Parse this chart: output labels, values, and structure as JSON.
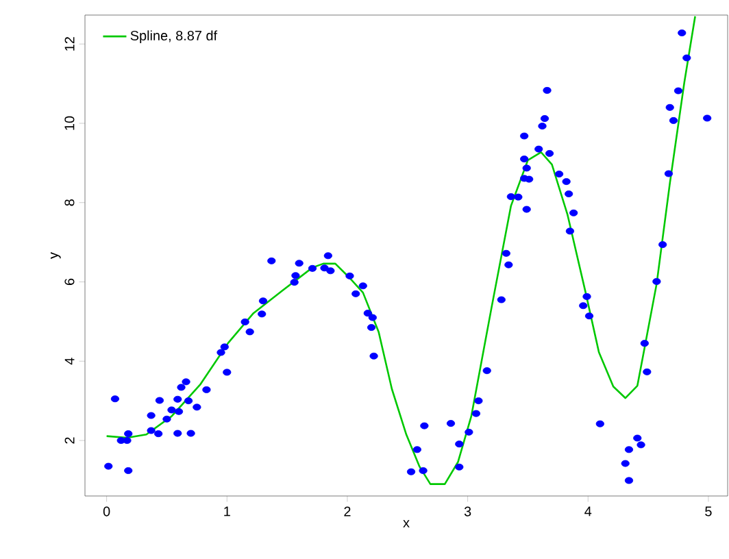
{
  "chart_data": {
    "type": "scatter",
    "xlabel": "x",
    "ylabel": "y",
    "xlim": [
      -0.18,
      5.16
    ],
    "ylim": [
      0.6,
      12.73
    ],
    "xticks": [
      0,
      1,
      2,
      3,
      4,
      5
    ],
    "yticks": [
      2,
      4,
      6,
      8,
      10,
      12
    ],
    "grid": false,
    "legend": "top left",
    "series": [
      {
        "marker": "circle",
        "color": "#0000ff",
        "x": [
          0.015,
          0.07,
          0.12,
          0.17,
          0.18,
          0.18,
          0.37,
          0.37,
          0.44,
          0.43,
          0.5,
          0.54,
          0.59,
          0.6,
          0.59,
          0.62,
          0.66,
          0.68,
          0.7,
          0.75,
          0.83,
          0.95,
          0.98,
          1.0,
          1.15,
          1.19,
          1.3,
          1.29,
          1.37,
          1.56,
          1.57,
          1.6,
          1.71,
          1.84,
          1.81,
          1.86,
          2.02,
          2.13,
          2.07,
          2.17,
          2.21,
          2.2,
          2.22,
          2.64,
          2.58,
          2.53,
          2.63,
          2.86,
          2.93,
          2.93,
          3.01,
          3.07,
          3.09,
          3.16,
          3.28,
          3.34,
          3.32,
          3.36,
          3.42,
          3.49,
          3.47,
          3.51,
          3.49,
          3.47,
          3.47,
          3.59,
          3.68,
          3.62,
          3.64,
          3.66,
          3.76,
          3.82,
          3.84,
          3.88,
          3.85,
          3.99,
          3.96,
          4.01,
          4.1,
          4.41,
          4.44,
          4.34,
          4.31,
          4.34,
          4.49,
          4.47,
          4.57,
          4.62,
          4.67,
          4.71,
          4.68,
          4.75,
          4.99,
          4.82,
          4.78
        ],
        "values": [
          1.35,
          3.05,
          2.0,
          2.0,
          2.17,
          1.24,
          2.63,
          2.25,
          3.01,
          2.17,
          2.54,
          2.77,
          3.04,
          2.73,
          2.18,
          3.34,
          3.48,
          3.0,
          2.18,
          2.84,
          3.28,
          4.22,
          4.36,
          3.72,
          4.99,
          4.74,
          5.52,
          5.19,
          6.53,
          5.99,
          6.16,
          6.47,
          6.34,
          6.66,
          6.35,
          6.28,
          6.15,
          5.9,
          5.7,
          5.21,
          5.1,
          4.85,
          4.13,
          2.37,
          1.77,
          1.21,
          1.24,
          2.43,
          1.91,
          1.33,
          2.21,
          2.68,
          3.0,
          3.76,
          5.55,
          6.43,
          6.72,
          8.15,
          8.14,
          7.83,
          8.61,
          8.59,
          8.87,
          9.1,
          9.68,
          9.35,
          9.24,
          9.93,
          10.12,
          10.83,
          8.72,
          8.53,
          8.22,
          7.74,
          7.28,
          5.63,
          5.4,
          5.14,
          2.42,
          2.06,
          1.89,
          1.77,
          1.42,
          0.99,
          3.73,
          4.45,
          6.01,
          6.94,
          8.73,
          10.07,
          10.4,
          10.82,
          10.13,
          11.65,
          12.28
        ]
      },
      {
        "type": "line",
        "marker": "none",
        "name": "Spline, 8.87 df",
        "color": "#00c800",
        "x": [
          0,
          0.17,
          0.33,
          0.54,
          0.78,
          1.01,
          1.22,
          1.46,
          1.71,
          1.8,
          1.9,
          2.01,
          2.13,
          2.26,
          2.37,
          2.49,
          2.6,
          2.69,
          2.81,
          2.92,
          3.03,
          3.2,
          3.36,
          3.5,
          3.61,
          3.7,
          3.83,
          3.98,
          4.09,
          4.21,
          4.31,
          4.41,
          4.47,
          4.57,
          4.68,
          4.8,
          4.89
        ],
        "values": [
          2.11,
          2.07,
          2.15,
          2.61,
          3.42,
          4.46,
          5.21,
          5.78,
          6.36,
          6.46,
          6.46,
          6.13,
          5.73,
          4.74,
          3.3,
          2.15,
          1.34,
          0.9,
          0.9,
          1.46,
          2.61,
          5.38,
          7.92,
          9.07,
          9.27,
          8.96,
          7.69,
          5.73,
          4.23,
          3.36,
          3.07,
          3.38,
          4.34,
          5.95,
          8.49,
          11.03,
          12.7
        ]
      }
    ]
  }
}
